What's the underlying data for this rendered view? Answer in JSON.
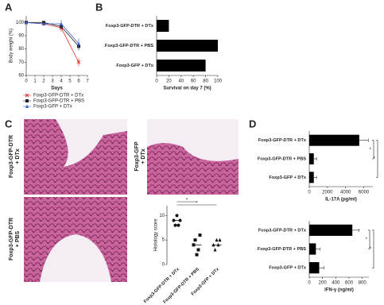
{
  "figure": {
    "panel_labels": [
      "A",
      "B",
      "C",
      "D"
    ],
    "histology_labels": [
      [
        "Foxp3-GFP-DTR",
        "+ DTx"
      ],
      [
        "Foxp3-GFP",
        "+ DTx"
      ],
      [
        "Foxp3-GFP-DTR",
        "+ PBS"
      ]
    ]
  },
  "chart_data": [
    {
      "type": "line",
      "x_label": "Days",
      "y_label": "Body weight (%)",
      "x": [
        0,
        2,
        4,
        6
      ],
      "xlim": [
        0,
        7
      ],
      "xticks": [
        0,
        1,
        2,
        3,
        4,
        5,
        6,
        7
      ],
      "ylim": [
        60,
        105
      ],
      "yticks": [
        60,
        70,
        80,
        90,
        100
      ],
      "series": [
        {
          "name": "Foxp3-GFP-DTR + DTx",
          "color": "#e0302a",
          "marker": "cross",
          "values": [
            100,
            99,
            96,
            70
          ],
          "errors": [
            0,
            1,
            3,
            3
          ]
        },
        {
          "name": "Foxp3-GFP-DTR + PBS",
          "color": "#222222",
          "marker": "square",
          "values": [
            100,
            100,
            97,
            82
          ],
          "errors": [
            0,
            1,
            2,
            3
          ]
        },
        {
          "name": "Foxp3-GFP + DTx",
          "color": "#3a5fcd",
          "marker": "triangle",
          "values": [
            100,
            99,
            99,
            84
          ],
          "errors": [
            0,
            1,
            3,
            4
          ]
        }
      ]
    },
    {
      "type": "hbar",
      "x_label": "Survival on day 7  (%)",
      "categories": [
        "Foxp3-GFP-DTR + DTx",
        "Foxp3-GFP-DTR + PBS",
        "Foxp3-GFP + DTx"
      ],
      "values": [
        20,
        100,
        80
      ],
      "color": "#000000",
      "xlim": [
        0,
        100
      ],
      "xticks": [
        0,
        20,
        40,
        60,
        80,
        100
      ]
    },
    {
      "type": "strip",
      "y_label": "Histology  score",
      "categories": [
        "Foxp3-GFP-DTR + DTx",
        "Foxp3-GFP-DTR + PBS",
        "Foxp3-GFP + DTx"
      ],
      "points": [
        [
          9,
          8,
          10,
          8,
          9
        ],
        [
          4,
          5,
          2,
          3,
          6
        ],
        [
          4,
          3,
          5,
          4,
          5
        ]
      ],
      "means": [
        9,
        4,
        4
      ],
      "markers": [
        "circle",
        "square",
        "triangle"
      ],
      "ylim": [
        0,
        12
      ],
      "yticks": [
        0,
        5,
        10
      ],
      "annotations": [
        "*",
        "*"
      ]
    },
    {
      "type": "hbar",
      "x_label": "IL-17A (pg/ml)",
      "categories": [
        "Foxp3-GFP-DTR + DTx",
        "Foxp3-GFP-DTR + PBS",
        "Foxp3-GFP + DTx"
      ],
      "values": [
        5500,
        500,
        500
      ],
      "errors": [
        1000,
        300,
        300
      ],
      "color": "#000000",
      "xlim": [
        0,
        7000
      ],
      "xticks": [
        0,
        2000,
        4000,
        6000
      ],
      "annotations": [
        "*",
        "*"
      ]
    },
    {
      "type": "hbar",
      "x_label": "IFN-γ (ng/ml)",
      "categories": [
        "Foxp3-GFP-DTR + DTx",
        "Foxp3-GFP-DTR + PBS",
        "Foxp3-GFP + DTx"
      ],
      "values": [
        650,
        100,
        150
      ],
      "errors": [
        100,
        60,
        70
      ],
      "color": "#000000",
      "xlim": [
        0,
        900
      ],
      "xticks": [
        0,
        200,
        400,
        600,
        800
      ],
      "annotations": [
        "*",
        "*"
      ]
    }
  ]
}
